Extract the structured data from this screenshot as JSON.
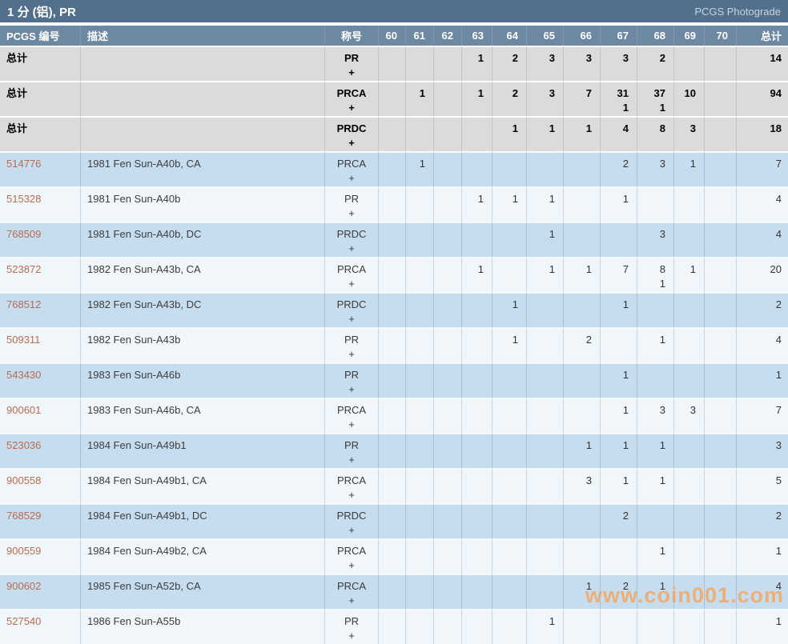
{
  "title_bar": {
    "title": "1 分 (铝), PR",
    "link": "PCGS Photograde"
  },
  "colors": {
    "title_bar_bg": "#526f8c",
    "header_bg": "#6d88a1",
    "total_row_bg": "#dbdbdb",
    "row_blue": "#c6ddef",
    "row_light": "#f0f6fa",
    "link_color": "#b96c4e",
    "watermark_color": "#f5a55f"
  },
  "table": {
    "plus_symbol": "+",
    "headers": {
      "number": "PCGS 编号",
      "description": "描述",
      "designation": "称号",
      "grades": [
        "60",
        "61",
        "62",
        "63",
        "64",
        "65",
        "66",
        "67",
        "68",
        "69",
        "70"
      ],
      "total": "总计"
    },
    "rows": [
      {
        "number": "总计",
        "is_total": true,
        "description": "",
        "designation": "PR",
        "grades": [
          "",
          "",
          "",
          "1",
          "2",
          "3",
          "3",
          "3",
          "2",
          "",
          ""
        ],
        "total": "14"
      },
      {
        "number": "总计",
        "is_total": true,
        "description": "",
        "designation": "PRCA",
        "grades": [
          "",
          "1",
          "",
          "1",
          "2",
          "3",
          "7",
          "31",
          "37",
          "10",
          ""
        ],
        "grades_plus": [
          "",
          "",
          "",
          "",
          "",
          "",
          "",
          "1",
          "1",
          "",
          ""
        ],
        "total": "94"
      },
      {
        "number": "总计",
        "is_total": true,
        "description": "",
        "designation": "PRDC",
        "grades": [
          "",
          "",
          "",
          "",
          "1",
          "1",
          "1",
          "4",
          "8",
          "3",
          ""
        ],
        "total": "18"
      },
      {
        "number": "514776",
        "description": "1981 Fen Sun-A40b, CA",
        "designation": "PRCA",
        "grades": [
          "",
          "1",
          "",
          "",
          "",
          "",
          "",
          "2",
          "3",
          "1",
          ""
        ],
        "total": "7"
      },
      {
        "number": "515328",
        "description": "1981 Fen Sun-A40b",
        "designation": "PR",
        "grades": [
          "",
          "",
          "",
          "1",
          "1",
          "1",
          "",
          "1",
          "",
          "",
          ""
        ],
        "total": "4"
      },
      {
        "number": "768509",
        "description": "1981 Fen Sun-A40b, DC",
        "designation": "PRDC",
        "grades": [
          "",
          "",
          "",
          "",
          "",
          "1",
          "",
          "",
          "3",
          "",
          ""
        ],
        "total": "4"
      },
      {
        "number": "523872",
        "description": "1982 Fen Sun-A43b, CA",
        "designation": "PRCA",
        "grades": [
          "",
          "",
          "",
          "1",
          "",
          "1",
          "1",
          "7",
          "8",
          "1",
          ""
        ],
        "grades_plus": [
          "",
          "",
          "",
          "",
          "",
          "",
          "",
          "",
          "1",
          "",
          ""
        ],
        "total": "20"
      },
      {
        "number": "768512",
        "description": "1982 Fen Sun-A43b, DC",
        "designation": "PRDC",
        "grades": [
          "",
          "",
          "",
          "",
          "1",
          "",
          "",
          "1",
          "",
          "",
          ""
        ],
        "total": "2"
      },
      {
        "number": "509311",
        "description": "1982 Fen Sun-A43b",
        "designation": "PR",
        "grades": [
          "",
          "",
          "",
          "",
          "1",
          "",
          "2",
          "",
          "1",
          "",
          ""
        ],
        "total": "4"
      },
      {
        "number": "543430",
        "description": "1983 Fen Sun-A46b",
        "designation": "PR",
        "grades": [
          "",
          "",
          "",
          "",
          "",
          "",
          "",
          "1",
          "",
          "",
          ""
        ],
        "total": "1"
      },
      {
        "number": "900601",
        "description": "1983 Fen Sun-A46b, CA",
        "designation": "PRCA",
        "grades": [
          "",
          "",
          "",
          "",
          "",
          "",
          "",
          "1",
          "3",
          "3",
          ""
        ],
        "total": "7"
      },
      {
        "number": "523036",
        "description": "1984 Fen Sun-A49b1",
        "designation": "PR",
        "grades": [
          "",
          "",
          "",
          "",
          "",
          "",
          "1",
          "1",
          "1",
          "",
          ""
        ],
        "total": "3"
      },
      {
        "number": "900558",
        "description": "1984 Fen Sun-A49b1, CA",
        "designation": "PRCA",
        "grades": [
          "",
          "",
          "",
          "",
          "",
          "",
          "3",
          "1",
          "1",
          "",
          ""
        ],
        "total": "5"
      },
      {
        "number": "768529",
        "description": "1984 Fen Sun-A49b1, DC",
        "designation": "PRDC",
        "grades": [
          "",
          "",
          "",
          "",
          "",
          "",
          "",
          "2",
          "",
          "",
          ""
        ],
        "total": "2"
      },
      {
        "number": "900559",
        "description": "1984 Fen Sun-A49b2, CA",
        "designation": "PRCA",
        "grades": [
          "",
          "",
          "",
          "",
          "",
          "",
          "",
          "",
          "1",
          "",
          ""
        ],
        "total": "1"
      },
      {
        "number": "900602",
        "description": "1985 Fen Sun-A52b, CA",
        "designation": "PRCA",
        "grades": [
          "",
          "",
          "",
          "",
          "",
          "",
          "1",
          "2",
          "1",
          "",
          ""
        ],
        "total": "4"
      },
      {
        "number": "527540",
        "description": "1986 Fen Sun-A55b",
        "designation": "PR",
        "grades": [
          "",
          "",
          "",
          "",
          "",
          "1",
          "",
          "",
          "",
          "",
          ""
        ],
        "total": "1"
      }
    ]
  },
  "watermark": "www.coin001.com"
}
